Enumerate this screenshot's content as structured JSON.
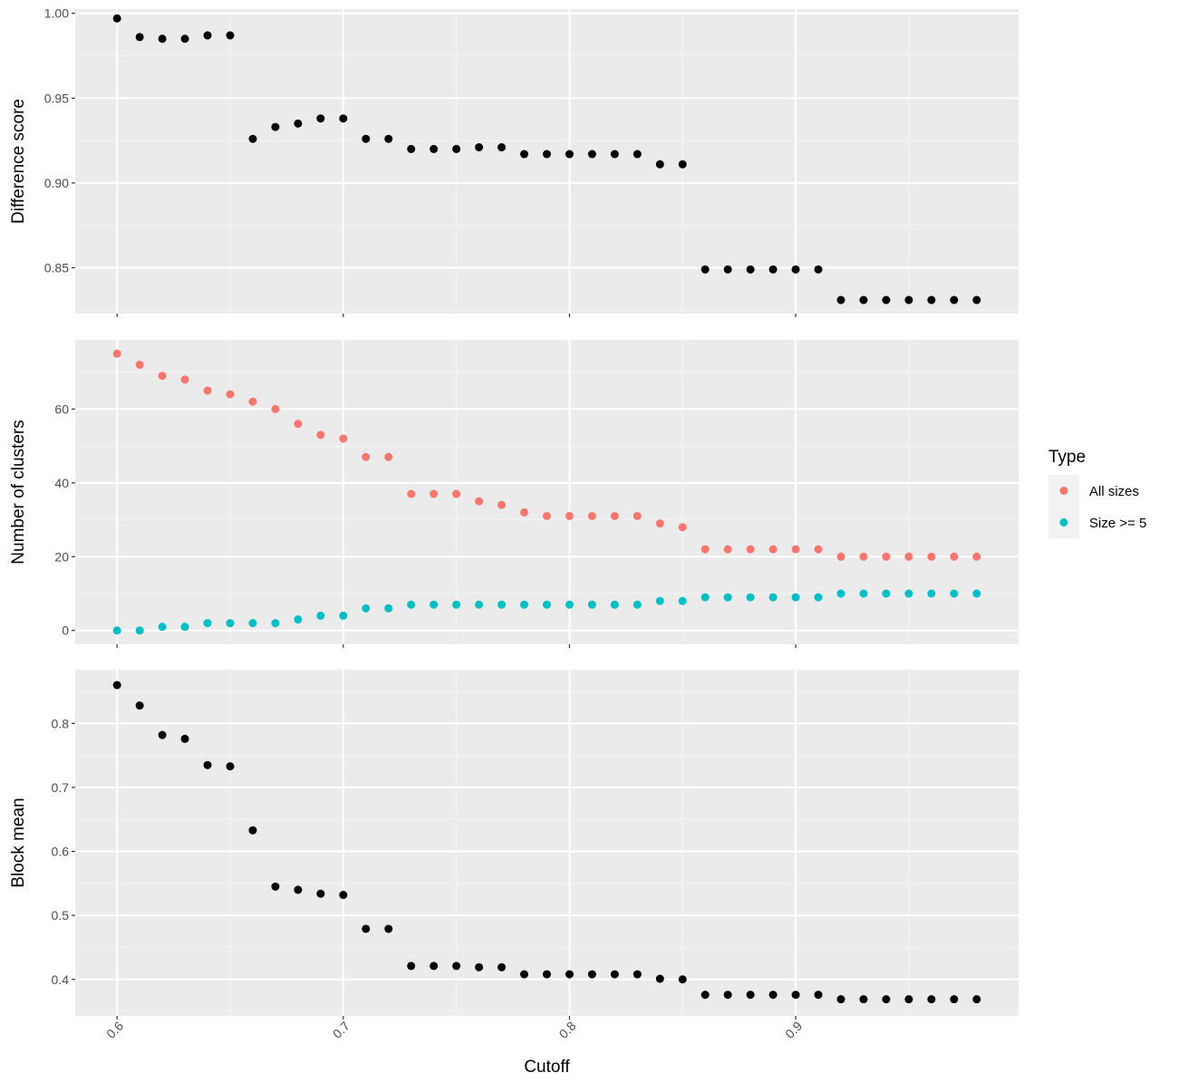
{
  "colors": {
    "panel_bg": "#EBEBEB",
    "grid_major": "#FFFFFF",
    "grid_minor": "#F5F5F5",
    "tick_text": "#4D4D4D",
    "tick_mark": "#333333",
    "point_default": "#000000",
    "all_sizes": "#F8766D",
    "size_ge_5": "#00BFC4",
    "legend_key_bg": "#F2F2F2"
  },
  "chart_data": [
    {
      "type": "scatter",
      "ylabel": "Difference score",
      "xlim": [
        0.5815,
        0.9985
      ],
      "ylim": [
        0.823,
        1.0025
      ],
      "y_ticks": [
        {
          "value": 0.85,
          "label": "0.85"
        },
        {
          "value": 0.9,
          "label": "0.90"
        },
        {
          "value": 0.95,
          "label": "0.95"
        },
        {
          "value": 1.0,
          "label": "1.00"
        }
      ],
      "x": [
        0.6,
        0.61,
        0.62,
        0.63,
        0.64,
        0.65,
        0.66,
        0.67,
        0.68,
        0.69,
        0.7,
        0.71,
        0.72,
        0.73,
        0.74,
        0.75,
        0.76,
        0.77,
        0.78,
        0.79,
        0.8,
        0.81,
        0.82,
        0.83,
        0.84,
        0.85,
        0.86,
        0.87,
        0.88,
        0.89,
        0.9,
        0.91,
        0.92,
        0.93,
        0.94,
        0.95,
        0.96,
        0.97,
        0.98
      ],
      "series": [
        {
          "color_key": "point_default",
          "values": [
            0.997,
            0.986,
            0.985,
            0.985,
            0.987,
            0.987,
            0.926,
            0.933,
            0.935,
            0.938,
            0.938,
            0.926,
            0.926,
            0.92,
            0.92,
            0.92,
            0.921,
            0.921,
            0.917,
            0.917,
            0.917,
            0.917,
            0.917,
            0.917,
            0.911,
            0.911,
            0.849,
            0.849,
            0.849,
            0.849,
            0.849,
            0.849,
            0.831,
            0.831,
            0.831,
            0.831,
            0.831,
            0.831,
            0.831
          ]
        }
      ]
    },
    {
      "type": "scatter",
      "ylabel": "Number of clusters",
      "xlim": [
        0.5815,
        0.9985
      ],
      "ylim": [
        -3.75,
        78.75
      ],
      "y_ticks": [
        {
          "value": 0,
          "label": "0"
        },
        {
          "value": 20,
          "label": "20"
        },
        {
          "value": 40,
          "label": "40"
        },
        {
          "value": 60,
          "label": "60"
        }
      ],
      "x": [
        0.6,
        0.61,
        0.62,
        0.63,
        0.64,
        0.65,
        0.66,
        0.67,
        0.68,
        0.69,
        0.7,
        0.71,
        0.72,
        0.73,
        0.74,
        0.75,
        0.76,
        0.77,
        0.78,
        0.79,
        0.8,
        0.81,
        0.82,
        0.83,
        0.84,
        0.85,
        0.86,
        0.87,
        0.88,
        0.89,
        0.9,
        0.91,
        0.92,
        0.93,
        0.94,
        0.95,
        0.96,
        0.97,
        0.98
      ],
      "series": [
        {
          "name": "All sizes",
          "color_key": "all_sizes",
          "values": [
            75,
            72,
            69,
            68,
            65,
            64,
            62,
            60,
            56,
            53,
            52,
            47,
            47,
            37,
            37,
            37,
            35,
            34,
            32,
            31,
            31,
            31,
            31,
            31,
            29,
            28,
            22,
            22,
            22,
            22,
            22,
            22,
            20,
            20,
            20,
            20,
            20,
            20,
            20
          ]
        },
        {
          "name": "Size >= 5",
          "color_key": "size_ge_5",
          "values": [
            0,
            0,
            1,
            1,
            2,
            2,
            2,
            2,
            3,
            4,
            4,
            6,
            6,
            7,
            7,
            7,
            7,
            7,
            7,
            7,
            7,
            7,
            7,
            7,
            8,
            8,
            9,
            9,
            9,
            9,
            9,
            9,
            10,
            10,
            10,
            10,
            10,
            10,
            10
          ]
        }
      ]
    },
    {
      "type": "scatter",
      "xlabel": "Cutoff",
      "ylabel": "Block mean",
      "xlim": [
        0.5815,
        0.9985
      ],
      "ylim": [
        0.343,
        0.884
      ],
      "x_ticks": [
        {
          "value": 0.6,
          "label": "0.6"
        },
        {
          "value": 0.7,
          "label": "0.7"
        },
        {
          "value": 0.8,
          "label": "0.8"
        },
        {
          "value": 0.9,
          "label": "0.9"
        }
      ],
      "y_ticks": [
        {
          "value": 0.4,
          "label": "0.4"
        },
        {
          "value": 0.5,
          "label": "0.5"
        },
        {
          "value": 0.6,
          "label": "0.6"
        },
        {
          "value": 0.7,
          "label": "0.7"
        },
        {
          "value": 0.8,
          "label": "0.8"
        }
      ],
      "x": [
        0.6,
        0.61,
        0.62,
        0.63,
        0.64,
        0.65,
        0.66,
        0.67,
        0.68,
        0.69,
        0.7,
        0.71,
        0.72,
        0.73,
        0.74,
        0.75,
        0.76,
        0.77,
        0.78,
        0.79,
        0.8,
        0.81,
        0.82,
        0.83,
        0.84,
        0.85,
        0.86,
        0.87,
        0.88,
        0.89,
        0.9,
        0.91,
        0.92,
        0.93,
        0.94,
        0.95,
        0.96,
        0.97,
        0.98
      ],
      "series": [
        {
          "color_key": "point_default",
          "values": [
            0.86,
            0.828,
            0.782,
            0.776,
            0.735,
            0.733,
            0.633,
            0.545,
            0.54,
            0.534,
            0.532,
            0.479,
            0.479,
            0.421,
            0.421,
            0.421,
            0.419,
            0.419,
            0.408,
            0.408,
            0.408,
            0.408,
            0.408,
            0.408,
            0.401,
            0.4,
            0.376,
            0.376,
            0.376,
            0.376,
            0.376,
            0.376,
            0.369,
            0.369,
            0.369,
            0.369,
            0.369,
            0.369,
            0.369
          ]
        }
      ]
    }
  ],
  "legend": {
    "title": "Type",
    "items": [
      {
        "label": "All sizes",
        "color_key": "all_sizes"
      },
      {
        "label": "Size >= 5",
        "color_key": "size_ge_5"
      }
    ]
  }
}
